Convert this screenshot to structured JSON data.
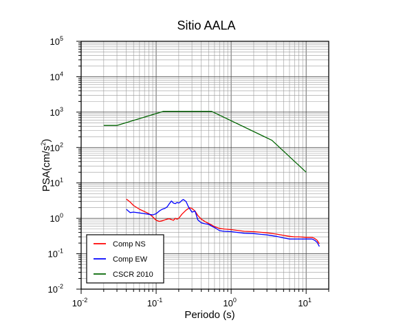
{
  "chart_data": {
    "type": "line",
    "title": "Sitio AALA",
    "xlabel": "Periodo (s)",
    "ylabel": "PSA(cm/s²)",
    "xscale": "log",
    "yscale": "log",
    "xlim": [
      0.01,
      20
    ],
    "ylim": [
      0.01,
      100000
    ],
    "grid": true,
    "legend_position": "bottom-left",
    "x_ticks": [
      {
        "base": "10",
        "exp": "-2"
      },
      {
        "base": "10",
        "exp": "-1"
      },
      {
        "base": "10",
        "exp": "0"
      },
      {
        "base": "10",
        "exp": "1"
      }
    ],
    "y_ticks": [
      {
        "base": "10",
        "exp": "-2"
      },
      {
        "base": "10",
        "exp": "-1"
      },
      {
        "base": "10",
        "exp": "0"
      },
      {
        "base": "10",
        "exp": "1"
      },
      {
        "base": "10",
        "exp": "2"
      },
      {
        "base": "10",
        "exp": "3"
      },
      {
        "base": "10",
        "exp": "4"
      },
      {
        "base": "10",
        "exp": "5"
      }
    ],
    "series": [
      {
        "name": "Comp NS",
        "color": "#ff0000",
        "x": [
          0.04,
          0.045,
          0.05,
          0.06,
          0.07,
          0.08,
          0.09,
          0.1,
          0.11,
          0.12,
          0.13,
          0.14,
          0.15,
          0.16,
          0.17,
          0.18,
          0.19,
          0.2,
          0.22,
          0.25,
          0.28,
          0.3,
          0.33,
          0.36,
          0.4,
          0.45,
          0.5,
          0.55,
          0.6,
          0.7,
          0.8,
          1.0,
          1.5,
          2.0,
          3.0,
          4.0,
          5.0,
          6.0,
          7.0,
          8.0,
          10.0,
          12.0,
          13.0,
          14.0,
          15.0
        ],
        "y": [
          3.5,
          2.9,
          2.3,
          1.8,
          1.55,
          1.35,
          1.1,
          0.88,
          0.82,
          0.85,
          0.9,
          0.95,
          0.98,
          0.92,
          0.88,
          1.0,
          0.95,
          1.0,
          1.3,
          1.7,
          2.0,
          1.9,
          1.6,
          1.2,
          0.95,
          0.8,
          0.72,
          0.65,
          0.58,
          0.52,
          0.5,
          0.48,
          0.43,
          0.42,
          0.39,
          0.36,
          0.33,
          0.31,
          0.3,
          0.3,
          0.29,
          0.29,
          0.27,
          0.24,
          0.19
        ]
      },
      {
        "name": "Comp EW",
        "color": "#0000ff",
        "x": [
          0.04,
          0.045,
          0.05,
          0.06,
          0.07,
          0.08,
          0.09,
          0.1,
          0.11,
          0.12,
          0.13,
          0.14,
          0.15,
          0.16,
          0.17,
          0.18,
          0.19,
          0.2,
          0.21,
          0.22,
          0.23,
          0.25,
          0.27,
          0.3,
          0.33,
          0.36,
          0.4,
          0.45,
          0.5,
          0.55,
          0.6,
          0.7,
          0.8,
          1.0,
          1.5,
          2.0,
          3.0,
          4.0,
          5.0,
          6.0,
          7.0,
          8.0,
          10.0,
          12.0,
          13.0,
          14.0,
          15.0
        ],
        "y": [
          1.8,
          1.45,
          1.5,
          1.42,
          1.35,
          1.3,
          1.25,
          1.35,
          1.6,
          1.8,
          1.9,
          2.1,
          2.6,
          3.1,
          2.7,
          2.6,
          2.8,
          2.7,
          2.9,
          3.2,
          3.4,
          3.0,
          2.1,
          1.5,
          1.6,
          0.9,
          0.75,
          0.7,
          0.68,
          0.6,
          0.55,
          0.45,
          0.43,
          0.42,
          0.38,
          0.37,
          0.34,
          0.31,
          0.28,
          0.26,
          0.26,
          0.26,
          0.26,
          0.26,
          0.24,
          0.21,
          0.16
        ]
      },
      {
        "name": "CSCR 2010",
        "color": "#006400",
        "x": [
          0.02,
          0.03,
          0.125,
          0.55,
          3.5,
          10.0
        ],
        "y": [
          420,
          420,
          1050,
          1050,
          160,
          20
        ]
      }
    ]
  }
}
